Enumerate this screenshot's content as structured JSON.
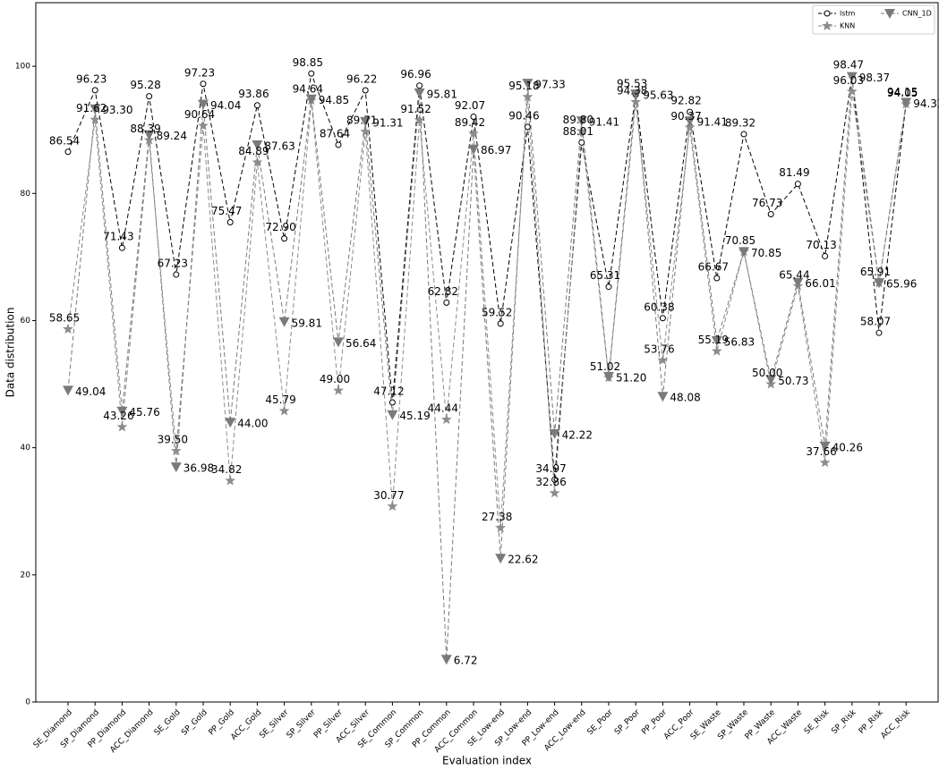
{
  "chart_data": {
    "type": "line",
    "x_label": "Evaluation index",
    "y_label": "Data distribution",
    "categories": [
      "SE_Diamond",
      "SP_Diamond",
      "PP_Diamond",
      "ACC_Diamond",
      "SE_Gold",
      "SP_Gold",
      "PP_Gold",
      "ACC_Gold",
      "SE_Silver",
      "SP_Silver",
      "PP_Silver",
      "ACC_Silver",
      "SE_Common",
      "SP_Common",
      "PP_Common",
      "ACC_Common",
      "SE_Low-end",
      "SP_Low-end",
      "PP_Low-end",
      "ACC_Low-end",
      "SE_Poor",
      "SP_Poor",
      "PP_Poor",
      "ACC_Poor",
      "SE_Waste",
      "SP_Waste",
      "PP_Waste",
      "ACC_Waste",
      "SE_Risk",
      "SP_Risk",
      "PP_Risk",
      "ACC_Risk"
    ],
    "series": [
      {
        "name": "lstm",
        "color": "#000000",
        "marker": "circle",
        "values": [
          86.54,
          96.23,
          71.43,
          95.28,
          67.23,
          97.23,
          75.47,
          93.86,
          72.9,
          98.85,
          87.64,
          96.22,
          47.12,
          96.96,
          62.82,
          92.07,
          59.52,
          90.46,
          34.97,
          88.01,
          65.31,
          95.53,
          60.38,
          92.82,
          66.67,
          89.32,
          76.73,
          81.49,
          70.13,
          98.47,
          58.07,
          94.15
        ],
        "value_labels": [
          "86.54",
          "96.23",
          "71.43",
          "95.28",
          "67.23",
          "97.23",
          "75.47",
          "93.86",
          "72.90",
          "98.85",
          "87.64",
          "96.22",
          "47.12",
          "96.96",
          "62.82",
          "92.07",
          "59.52",
          "90.46",
          "34.97",
          "88.01",
          "65.31",
          "95.53",
          "60.38",
          "92.82",
          "66.67",
          "89.32",
          "76.73",
          "81.49",
          "70.13",
          "98.47",
          "58.07",
          "94.15"
        ]
      },
      {
        "name": "KNN",
        "color": "#8c8c8c",
        "marker": "star",
        "values": [
          58.65,
          91.62,
          43.26,
          88.39,
          39.5,
          90.64,
          34.82,
          84.89,
          45.79,
          94.64,
          49.0,
          89.71,
          30.77,
          91.52,
          44.44,
          89.42,
          27.38,
          95.18,
          32.86,
          89.8,
          51.02,
          94.38,
          53.76,
          90.37,
          55.19,
          70.85,
          50.0,
          65.44,
          37.66,
          96.03,
          65.91,
          94.05
        ],
        "value_labels": [
          "58.65",
          "91.62",
          "43.26",
          "88.39",
          "39.50",
          "90.64",
          "34.82",
          "84.89",
          "45.79",
          "94.64",
          "49.00",
          "89.71",
          "30.77",
          "91.52",
          "44.44",
          "89.42",
          "27.38",
          "95.18",
          "32.86",
          "89.80",
          "51.02",
          "94.38",
          "53.76",
          "90.37",
          "55.19",
          "70.85",
          "50.00",
          "65.44",
          "37.66",
          "96.03",
          "65.91",
          "94.05"
        ]
      },
      {
        "name": "CNN_1D",
        "color": "#7a7a7a",
        "marker": "triangle",
        "values": [
          49.04,
          93.3,
          45.76,
          89.24,
          36.98,
          94.04,
          44.0,
          87.63,
          59.81,
          94.85,
          56.64,
          91.31,
          45.19,
          95.81,
          6.72,
          86.97,
          22.62,
          97.33,
          42.22,
          91.41,
          51.2,
          95.63,
          48.08,
          91.41,
          56.83,
          70.85,
          50.73,
          66.01,
          40.26,
          98.37,
          65.96,
          94.33
        ],
        "value_labels": [
          "49.04",
          "93.30",
          "45.76",
          "89.24",
          "36.98",
          "94.04",
          "44.00",
          "87.63",
          "59.81",
          "94.85",
          "56.64",
          "91.31",
          "45.19",
          "95.81",
          "6.72",
          "86.97",
          "22.62",
          "97.33",
          "42.22",
          "91.41",
          "51.20",
          "95.63",
          "48.08",
          "91.41",
          "56.83",
          "70.85",
          "50.73",
          "66.01",
          "40.26",
          "98.37",
          "65.96",
          "94.33"
        ]
      }
    ],
    "ylim": [
      0,
      110
    ],
    "yticks": [
      0,
      20,
      40,
      60,
      80,
      100
    ],
    "grid": false,
    "legend": "upper right"
  }
}
